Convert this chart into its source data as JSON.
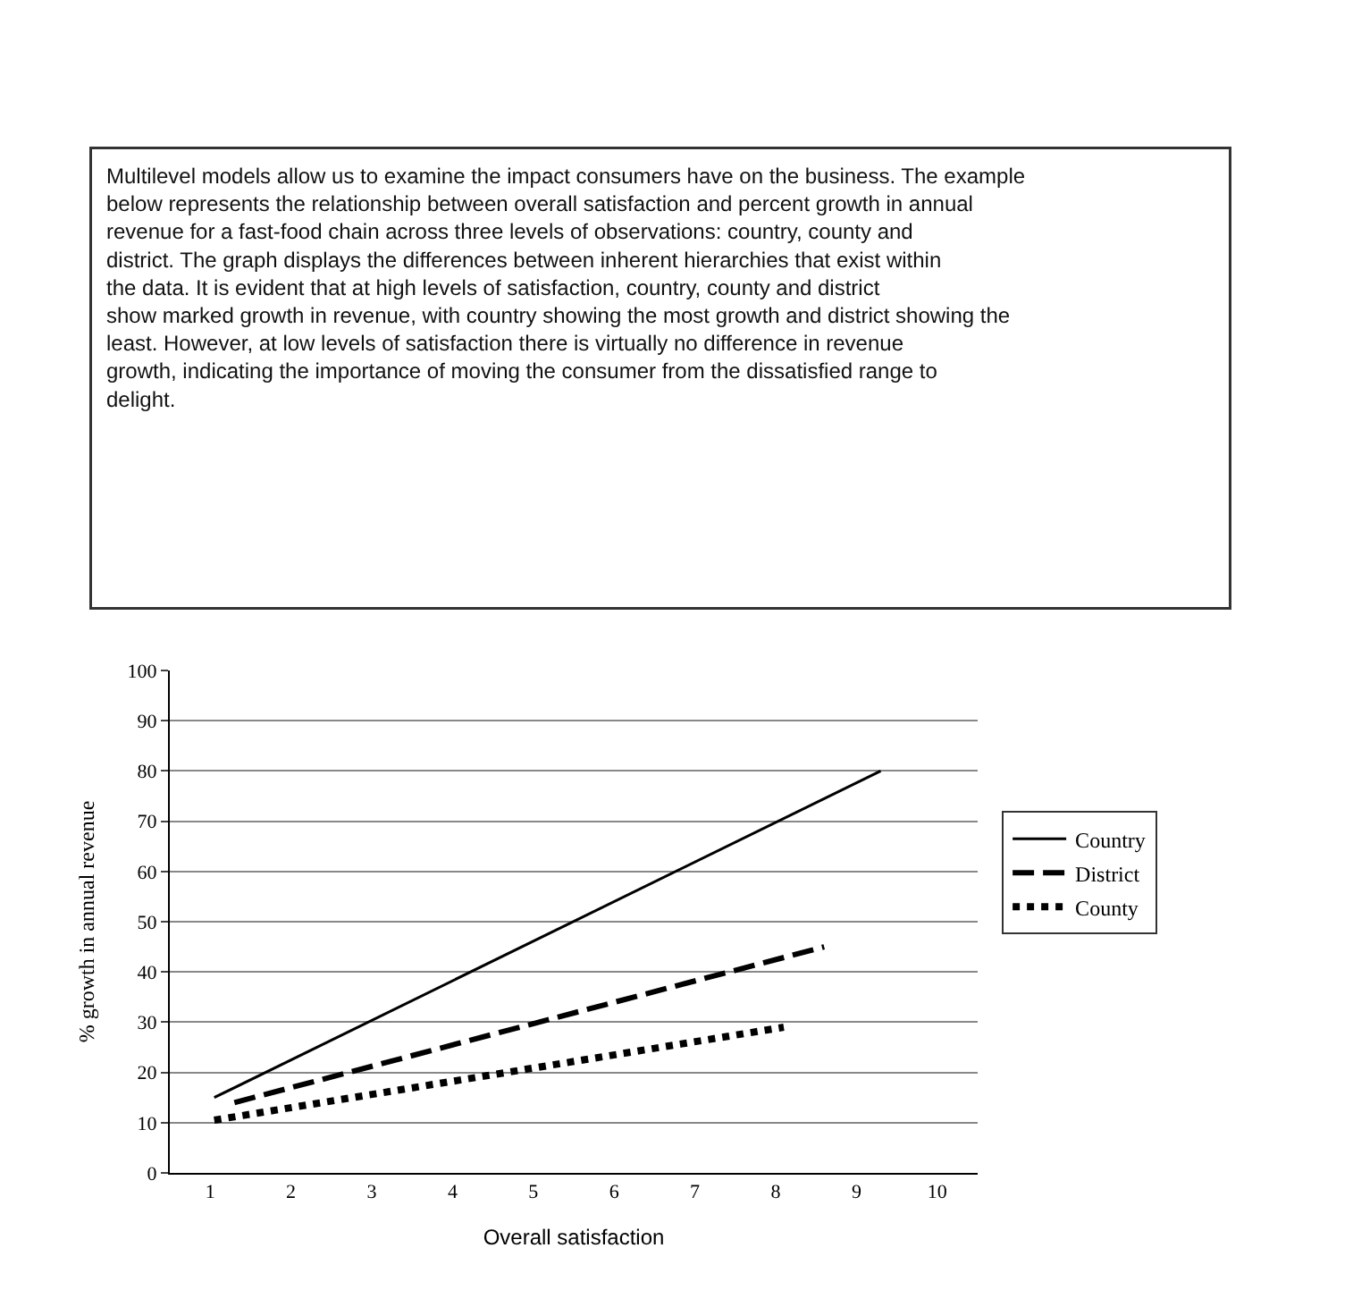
{
  "chart_data": {
    "type": "line",
    "xlabel": "Overall satisfaction",
    "ylabel": "% growth in annual revenue",
    "annotations": [
      "Multilevel models allow us to examine the impact consumers have on the business. The example below represents the relationship between overall satisfaction and percent growth in annual revenue for a fast-food chain across three levels of observations: country, county and district. The graph displays the differences between inherent hierarchies that exist within the data. It is evident that at high levels of satisfaction, country, county and district show marked growth in revenue, with country showing the most growth and district showing the least. However, at low levels of satisfaction there is virtually no difference in revenue growth, indicating the importance of moving the consumer from the dissatisfied range to delight."
    ],
    "series": [
      {
        "name": "Country",
        "color": "#000000",
        "line_style": "solid",
        "x": [
          1.05,
          9.3
        ],
        "values": [
          15,
          80
        ]
      },
      {
        "name": "District",
        "color": "#000000",
        "line_style": "dashed",
        "x": [
          1.3,
          8.6
        ],
        "values": [
          14,
          45
        ]
      },
      {
        "name": "County",
        "color": "#000000",
        "line_style": "dotted",
        "x": [
          1.05,
          8.1
        ],
        "values": [
          10.5,
          29
        ]
      }
    ],
    "xlim": [
      0.5,
      10.5
    ],
    "xticks": [
      1,
      2,
      3,
      4,
      5,
      6,
      7,
      8,
      9,
      10
    ],
    "ylim": [
      0,
      100
    ],
    "yticks": [
      0,
      10,
      20,
      30,
      40,
      50,
      60,
      70,
      80,
      90,
      100
    ],
    "grid": "y",
    "legend": "right",
    "marker": "none"
  }
}
